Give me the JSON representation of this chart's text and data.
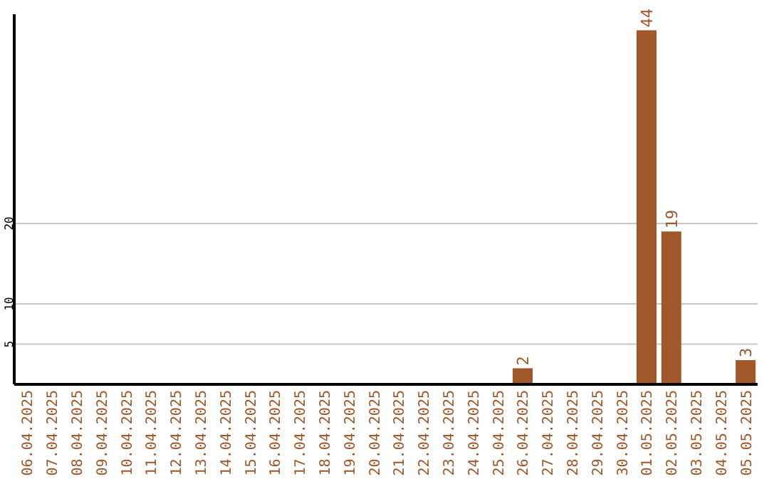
{
  "chart_data": {
    "type": "bar",
    "categories": [
      "06.04.2025",
      "07.04.2025",
      "08.04.2025",
      "09.04.2025",
      "10.04.2025",
      "11.04.2025",
      "12.04.2025",
      "13.04.2025",
      "14.04.2025",
      "15.04.2025",
      "16.04.2025",
      "17.04.2025",
      "18.04.2025",
      "19.04.2025",
      "20.04.2025",
      "21.04.2025",
      "22.04.2025",
      "23.04.2025",
      "24.04.2025",
      "25.04.2025",
      "26.04.2025",
      "27.04.2025",
      "28.04.2025",
      "29.04.2025",
      "30.04.2025",
      "01.05.2025",
      "02.05.2025",
      "03.05.2025",
      "04.05.2025",
      "05.05.2025"
    ],
    "values": [
      0,
      0,
      0,
      0,
      0,
      0,
      0,
      0,
      0,
      0,
      0,
      0,
      0,
      0,
      0,
      0,
      0,
      0,
      0,
      0,
      2,
      0,
      0,
      0,
      0,
      44,
      19,
      0,
      0,
      3
    ],
    "value_labels": [
      null,
      null,
      null,
      null,
      null,
      null,
      null,
      null,
      null,
      null,
      null,
      null,
      null,
      null,
      null,
      null,
      null,
      null,
      null,
      null,
      "2",
      null,
      null,
      null,
      null,
      "44",
      "19",
      null,
      null,
      "3"
    ],
    "color": "#a0572a",
    "ylim": [
      0,
      46
    ],
    "yticks": [
      5,
      10,
      20
    ],
    "grid": "y"
  }
}
